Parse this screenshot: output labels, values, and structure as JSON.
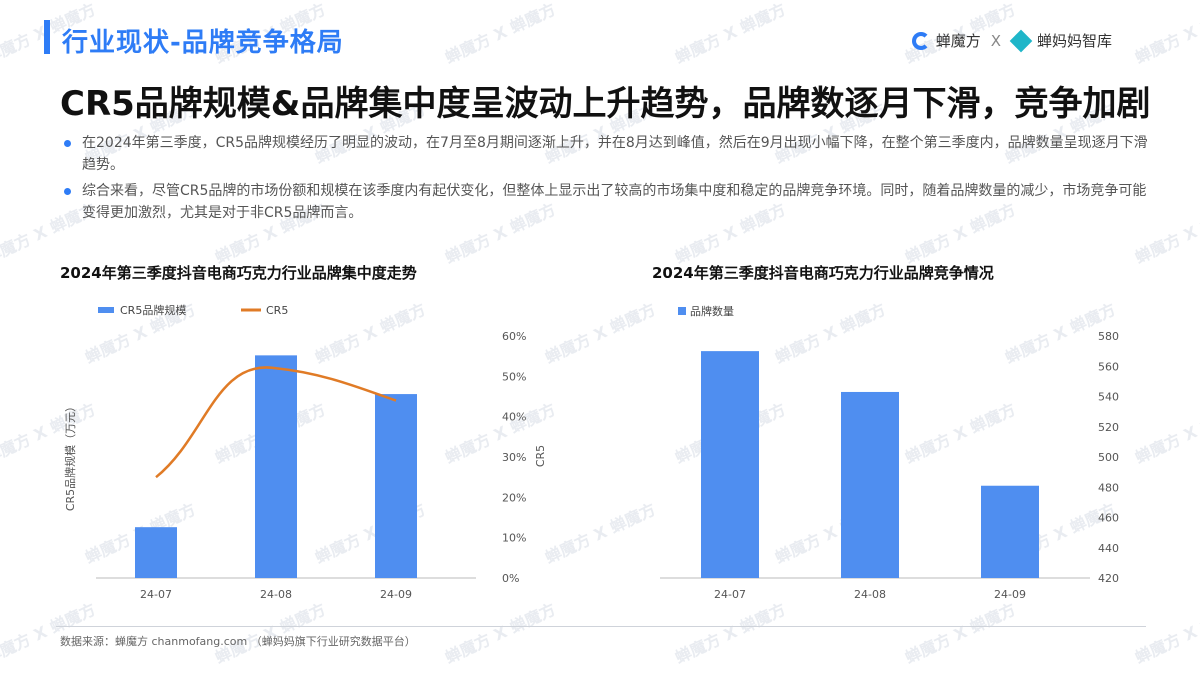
{
  "section": {
    "title": "行业现状-品牌竞争格局"
  },
  "logos": {
    "brand1": "蝉魔方",
    "sep": "X",
    "brand2": "蝉妈妈智库"
  },
  "headline": "CR5品牌规模&品牌集中度呈波动上升趋势，品牌数逐月下滑，竞争加剧",
  "bullets": [
    "在2024年第三季度，CR5品牌规模经历了明显的波动，在7月至8月期间逐渐上升，并在8月达到峰值，然后在9月出现小幅下降，在整个第三季度内，品牌数量呈现逐月下滑趋势。",
    "综合来看，尽管CR5品牌的市场份额和规模在该季度内有起伏变化，但整体上显示出了较高的市场集中度和稳定的品牌竞争环境。同时，随着品牌数量的减少，市场竞争可能变得更加激烈，尤其是对于非CR5品牌而言。"
  ],
  "chart_data": [
    {
      "type": "bar",
      "title": "2024年第三季度抖音电商巧克力行业品牌集中度走势",
      "categories": [
        "24-07",
        "24-08",
        "24-09"
      ],
      "series": [
        {
          "name": "CR5品牌规模",
          "type": "bar",
          "axis": "left",
          "values": [
            0.21,
            0.92,
            0.76
          ],
          "color": "#4f8ef0"
        },
        {
          "name": "CR5",
          "type": "line",
          "axis": "right",
          "values": [
            25,
            52,
            44
          ],
          "color": "#e07b26"
        }
      ],
      "ylabel": "CR5品牌规模（万元）",
      "y2label": "CR5",
      "y2lim": [
        0,
        60
      ],
      "y2ticks": [
        "0%",
        "10%",
        "20%",
        "30%",
        "40%",
        "50%",
        "60%"
      ],
      "legend": "top-left",
      "grid": false
    },
    {
      "type": "bar",
      "title": "2024年第三季度抖音电商巧克力行业品牌竞争情况",
      "categories": [
        "24-07",
        "24-08",
        "24-09"
      ],
      "series": [
        {
          "name": "品牌数量",
          "values": [
            570,
            543,
            481
          ],
          "color": "#4f8ef0"
        }
      ],
      "ylim": [
        420,
        580
      ],
      "yticks": [
        "420",
        "440",
        "460",
        "480",
        "500",
        "520",
        "540",
        "560",
        "580"
      ],
      "yaxis": "right",
      "legend": "top-left",
      "grid": false
    }
  ],
  "footer": "数据来源：蝉魔方 chanmofang.com （蝉妈妈旗下行业研究数据平台）"
}
